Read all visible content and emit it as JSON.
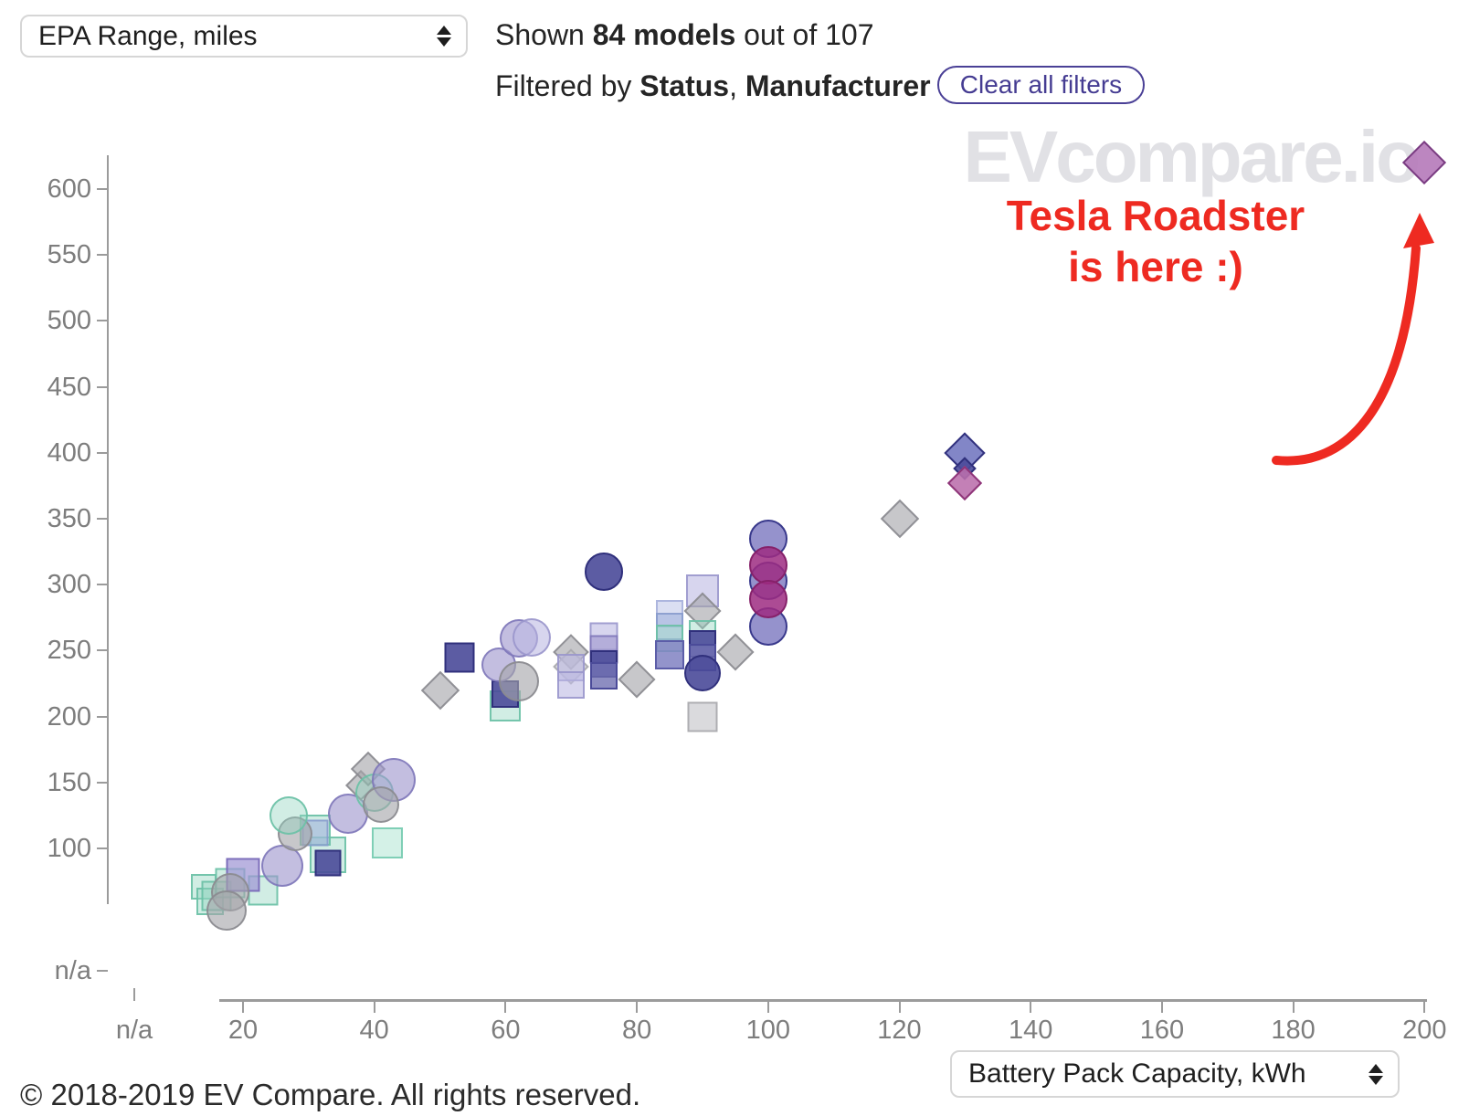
{
  "header": {
    "metric_select": {
      "value": "EPA Range, miles"
    },
    "shown_prefix": "Shown ",
    "shown_bold": "84 models",
    "shown_suffix": " out of 107",
    "filtered_prefix": "Filtered by ",
    "filter1": "Status",
    "separator": ", ",
    "filter2": "Manufacturer",
    "clear_button": "Clear all filters"
  },
  "watermark": "EVcompare.io",
  "annotation": {
    "line1": "Tesla Roadster",
    "line2": "is here :)",
    "color": "#ee2a21"
  },
  "footer": {
    "copyright": "© 2018-2019 EV Compare. All rights reserved.",
    "x_metric_select": {
      "value": "Battery Pack Capacity, kWh"
    }
  },
  "chart_data": {
    "type": "scatter",
    "title": "",
    "xlabel": "Battery Pack Capacity, kWh",
    "ylabel": "EPA Range, miles",
    "x_axis": {
      "ticks": [
        "n/a",
        "20",
        "40",
        "60",
        "80",
        "100",
        "120",
        "140",
        "160",
        "180",
        "200"
      ],
      "range": [
        0,
        200
      ]
    },
    "y_axis": {
      "ticks": [
        "600",
        "550",
        "500",
        "450",
        "400",
        "350",
        "300",
        "250",
        "200",
        "150",
        "100",
        "n/a"
      ],
      "range": [
        0,
        620
      ]
    },
    "grid": false,
    "legend": "none",
    "highlight": {
      "label": "Tesla Roadster",
      "kwh": 200,
      "miles": 620
    },
    "palette": {
      "teal": {
        "fill": "rgba(146,213,190,0.42)",
        "border": "rgba(106,192,165,0.9)",
        "bw": 2
      },
      "tealLight": {
        "fill": "rgba(183,232,215,0.6)",
        "border": "rgba(118,203,176,0.9)",
        "bw": 2
      },
      "navy": {
        "fill": "rgba(74,74,153,0.9)",
        "border": "#30307c",
        "bw": 2.5
      },
      "navyMed": {
        "fill": "rgba(112,112,178,0.8)",
        "border": "#4b4b99",
        "bw": 2
      },
      "slateLav": {
        "fill": "rgba(128,129,194,0.85)",
        "border": "#5c5da8",
        "bw": 2
      },
      "lavender": {
        "fill": "rgba(158,150,205,0.62)",
        "border": "rgba(126,118,184,0.85)",
        "bw": 2
      },
      "lavLight": {
        "fill": "rgba(189,185,226,0.6)",
        "border": "rgba(152,148,202,0.85)",
        "bw": 2
      },
      "periPale": {
        "fill": "rgba(199,206,235,0.65)",
        "border": "rgba(165,175,219,0.85)",
        "bw": 2
      },
      "blueGray": {
        "fill": "rgba(160,178,220,0.6)",
        "border": "rgba(132,152,202,0.8)",
        "bw": 2
      },
      "gray": {
        "fill": "rgba(164,164,169,0.62)",
        "border": "rgba(139,139,144,0.9)",
        "bw": 2
      },
      "grayLight": {
        "fill": "rgba(193,193,198,0.6)",
        "border": "rgba(168,168,173,0.9)",
        "bw": 2
      },
      "magenta": {
        "fill": "rgba(158,43,129,0.85)",
        "border": "#86216a",
        "bw": 2.5
      },
      "blueViolet": {
        "fill": "rgba(126,122,193,0.82)",
        "border": "#39398c",
        "bw": 2.5
      },
      "blueVioletD": {
        "fill": "rgba(113,117,191,0.88)",
        "border": "#32327e",
        "bw": 2.5
      },
      "orchid": {
        "fill": "rgba(182,124,187,0.92)",
        "border": "#7a3c82",
        "bw": 2.5
      },
      "orchidPink": {
        "fill": "rgba(187,110,172,0.88)",
        "border": "#8f3579",
        "bw": 2.5
      },
      "purpleLav": {
        "fill": "rgba(160,150,212,0.72)",
        "border": "#7d6fbb",
        "bw": 2
      }
    },
    "points": [
      {
        "kwh": 14,
        "miles": 71,
        "shape": "square",
        "color": "teal",
        "size": 28
      },
      {
        "kwh": 15,
        "miles": 60,
        "shape": "square",
        "color": "teal",
        "size": 30
      },
      {
        "kwh": 16,
        "miles": 64,
        "shape": "square",
        "color": "teal",
        "size": 33
      },
      {
        "kwh": 18,
        "miles": 74,
        "shape": "square",
        "color": "teal",
        "size": 33
      },
      {
        "kwh": 23,
        "miles": 68,
        "shape": "square",
        "color": "teal",
        "size": 33
      },
      {
        "kwh": 20,
        "miles": 80,
        "shape": "square",
        "color": "purpleLav",
        "size": 37
      },
      {
        "kwh": 18,
        "miles": 67,
        "shape": "circle",
        "color": "gray",
        "size": 21
      },
      {
        "kwh": 17.5,
        "miles": 53,
        "shape": "circle",
        "color": "gray",
        "size": 22
      },
      {
        "kwh": 26,
        "miles": 87,
        "shape": "circle",
        "color": "lavender",
        "size": 23
      },
      {
        "kwh": 33,
        "miles": 95,
        "shape": "square",
        "color": "teal",
        "size": 40
      },
      {
        "kwh": 33,
        "miles": 89,
        "shape": "square",
        "color": "navy",
        "size": 29
      },
      {
        "kwh": 31,
        "miles": 114,
        "shape": "square",
        "color": "teal",
        "size": 34
      },
      {
        "kwh": 31,
        "miles": 112,
        "shape": "square",
        "color": "blueGray",
        "size": 29
      },
      {
        "kwh": 28,
        "miles": 111,
        "shape": "circle",
        "color": "gray",
        "size": 19
      },
      {
        "kwh": 27,
        "miles": 125,
        "shape": "circle",
        "color": "teal",
        "size": 21
      },
      {
        "kwh": 42,
        "miles": 104,
        "shape": "square",
        "color": "tealLight",
        "size": 34
      },
      {
        "kwh": 36,
        "miles": 126,
        "shape": "circle",
        "color": "lavender",
        "size": 22
      },
      {
        "kwh": 38,
        "miles": 148,
        "shape": "diamond",
        "color": "gray",
        "size": 24
      },
      {
        "kwh": 39,
        "miles": 160,
        "shape": "diamond",
        "color": "gray",
        "size": 27
      },
      {
        "kwh": 40,
        "miles": 142,
        "shape": "circle",
        "color": "teal",
        "size": 21
      },
      {
        "kwh": 43,
        "miles": 152,
        "shape": "circle",
        "color": "lavender",
        "size": 24
      },
      {
        "kwh": 41,
        "miles": 133,
        "shape": "circle",
        "color": "gray",
        "size": 20
      },
      {
        "kwh": 50,
        "miles": 220,
        "shape": "diamond",
        "color": "gray",
        "size": 30
      },
      {
        "kwh": 53,
        "miles": 245,
        "shape": "square",
        "color": "navy",
        "size": 33
      },
      {
        "kwh": 60,
        "miles": 208,
        "shape": "square",
        "color": "teal",
        "size": 34
      },
      {
        "kwh": 60,
        "miles": 217,
        "shape": "square",
        "color": "navy",
        "size": 30
      },
      {
        "kwh": 59,
        "miles": 239,
        "shape": "circle",
        "color": "lavender",
        "size": 19
      },
      {
        "kwh": 62,
        "miles": 227,
        "shape": "circle",
        "color": "gray",
        "size": 22
      },
      {
        "kwh": 62,
        "miles": 259,
        "shape": "circle",
        "color": "lavender",
        "size": 21
      },
      {
        "kwh": 64,
        "miles": 260,
        "shape": "circle",
        "color": "lavLight",
        "size": 21
      },
      {
        "kwh": 70,
        "miles": 249,
        "shape": "diamond",
        "color": "gray",
        "size": 28
      },
      {
        "kwh": 70,
        "miles": 238,
        "shape": "diamond",
        "color": "grayLight",
        "size": 28
      },
      {
        "kwh": 70,
        "miles": 237,
        "shape": "square",
        "color": "lavLight",
        "size": 30
      },
      {
        "kwh": 70,
        "miles": 224,
        "shape": "square",
        "color": "lavLight",
        "size": 30
      },
      {
        "kwh": 75,
        "miles": 261,
        "shape": "square",
        "color": "lavLight",
        "size": 31
      },
      {
        "kwh": 75,
        "miles": 251,
        "shape": "square",
        "color": "lavender",
        "size": 31
      },
      {
        "kwh": 75,
        "miles": 240,
        "shape": "square",
        "color": "navy",
        "size": 30
      },
      {
        "kwh": 75,
        "miles": 231,
        "shape": "square",
        "color": "navyMed",
        "size": 30
      },
      {
        "kwh": 75,
        "miles": 310,
        "shape": "circle",
        "color": "navy",
        "size": 21
      },
      {
        "kwh": 80,
        "miles": 228,
        "shape": "diamond",
        "color": "gray",
        "size": 29
      },
      {
        "kwh": 90,
        "miles": 200,
        "shape": "square",
        "color": "grayLight",
        "size": 33
      },
      {
        "kwh": 85,
        "miles": 278,
        "shape": "square",
        "color": "periPale",
        "size": 30
      },
      {
        "kwh": 85,
        "miles": 268,
        "shape": "square",
        "color": "blueGray",
        "size": 30
      },
      {
        "kwh": 85,
        "miles": 259,
        "shape": "square",
        "color": "teal",
        "size": 30
      },
      {
        "kwh": 85,
        "miles": 247,
        "shape": "square",
        "color": "slateLav",
        "size": 32
      },
      {
        "kwh": 90,
        "miles": 295,
        "shape": "square",
        "color": "lavLight",
        "size": 36
      },
      {
        "kwh": 90,
        "miles": 280,
        "shape": "diamond",
        "color": "gray",
        "size": 29
      },
      {
        "kwh": 90,
        "miles": 263,
        "shape": "square",
        "color": "teal",
        "size": 30
      },
      {
        "kwh": 90,
        "miles": 255,
        "shape": "square",
        "color": "navy",
        "size": 30
      },
      {
        "kwh": 90,
        "miles": 245,
        "shape": "square",
        "color": "navyMed",
        "size": 30
      },
      {
        "kwh": 90,
        "miles": 233,
        "shape": "circle",
        "color": "navy",
        "size": 20
      },
      {
        "kwh": 95,
        "miles": 249,
        "shape": "diamond",
        "color": "gray",
        "size": 29
      },
      {
        "kwh": 100,
        "miles": 335,
        "shape": "circle",
        "color": "blueViolet",
        "size": 21
      },
      {
        "kwh": 100,
        "miles": 303,
        "shape": "circle",
        "color": "blueViolet",
        "size": 21
      },
      {
        "kwh": 100,
        "miles": 268,
        "shape": "circle",
        "color": "blueViolet",
        "size": 21
      },
      {
        "kwh": 100,
        "miles": 315,
        "shape": "circle",
        "color": "magenta",
        "size": 21
      },
      {
        "kwh": 100,
        "miles": 289,
        "shape": "circle",
        "color": "magenta",
        "size": 21
      },
      {
        "kwh": 120,
        "miles": 350,
        "shape": "diamond",
        "color": "gray",
        "size": 30
      },
      {
        "kwh": 130,
        "miles": 400,
        "shape": "diamond",
        "color": "blueVioletD",
        "size": 32
      },
      {
        "kwh": 130,
        "miles": 388,
        "shape": "diamond",
        "color": "navy",
        "size": 18
      },
      {
        "kwh": 130,
        "miles": 377,
        "shape": "diamond",
        "color": "orchidPink",
        "size": 27
      },
      {
        "kwh": 200,
        "miles": 620,
        "shape": "diamond",
        "color": "orchid",
        "size": 34
      }
    ]
  }
}
